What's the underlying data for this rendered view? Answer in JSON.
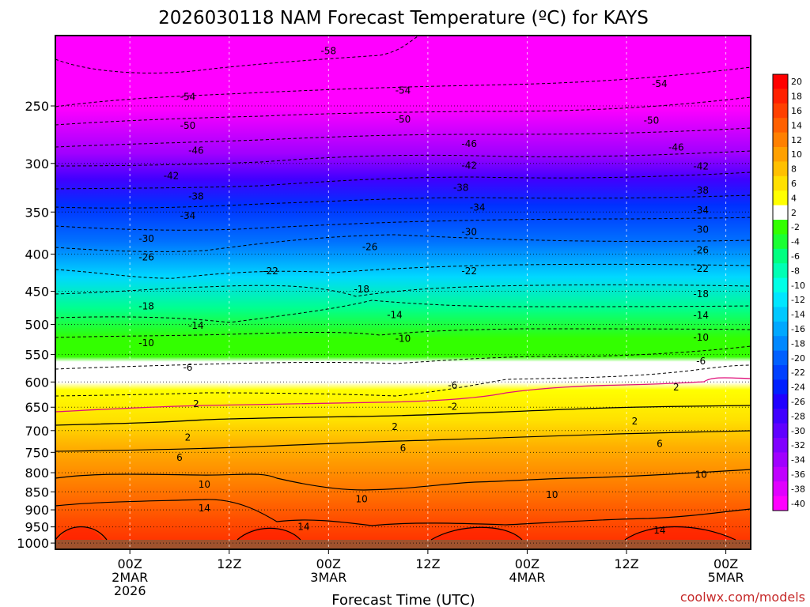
{
  "chart_data": {
    "type": "heatmap",
    "title": "2026030118 NAM Forecast Temperature (ºC) for KAYS",
    "xlabel": "Forecast Time (UTC)",
    "ylabel": "",
    "credit": "coolwx.com/models",
    "x_range_hours": [
      -3,
      81
    ],
    "y_pressure_range_hpa": [
      1020,
      200
    ],
    "y_ticks": [
      {
        "value": 250,
        "label": "250"
      },
      {
        "value": 300,
        "label": "300"
      },
      {
        "value": 350,
        "label": "350"
      },
      {
        "value": 400,
        "label": "400"
      },
      {
        "value": 450,
        "label": "450"
      },
      {
        "value": 500,
        "label": "500"
      },
      {
        "value": 550,
        "label": "550"
      },
      {
        "value": 600,
        "label": "600"
      },
      {
        "value": 650,
        "label": "650"
      },
      {
        "value": 700,
        "label": "700"
      },
      {
        "value": 750,
        "label": "750"
      },
      {
        "value": 800,
        "label": "800"
      },
      {
        "value": 850,
        "label": "850"
      },
      {
        "value": 900,
        "label": "900"
      },
      {
        "value": 950,
        "label": "950"
      },
      {
        "value": 1000,
        "label": "1000"
      }
    ],
    "x_ticks": [
      {
        "hour": 6,
        "lines": [
          "00Z",
          "2MAR",
          "2026"
        ]
      },
      {
        "hour": 18,
        "lines": [
          "12Z"
        ]
      },
      {
        "hour": 30,
        "lines": [
          "00Z",
          "3MAR"
        ]
      },
      {
        "hour": 42,
        "lines": [
          "12Z"
        ]
      },
      {
        "hour": 54,
        "lines": [
          "00Z",
          "4MAR"
        ]
      },
      {
        "hour": 66,
        "lines": [
          "12Z"
        ]
      },
      {
        "hour": 78,
        "lines": [
          "00Z",
          "5MAR"
        ]
      }
    ],
    "colorbar": {
      "colors": [
        "#ff0000",
        "#ff2000",
        "#ff4000",
        "#ff6000",
        "#ff8000",
        "#ffa000",
        "#ffc000",
        "#ffe000",
        "#ffff00",
        "#ffffff",
        "#33ff00",
        "#1aff33",
        "#00ff80",
        "#00ffb4",
        "#00ffe6",
        "#00e6ff",
        "#00c8ff",
        "#00a8ff",
        "#0088ff",
        "#0060ff",
        "#0040ff",
        "#0020ff",
        "#2000ff",
        "#4000ff",
        "#6000ff",
        "#8000ff",
        "#a000ff",
        "#c000ff",
        "#e000ff",
        "#ff00ff"
      ],
      "labels": [
        "20",
        "18",
        "16",
        "14",
        "12",
        "10",
        "8",
        "6",
        "4",
        "2",
        "-2",
        "-4",
        "-6",
        "-8",
        "-10",
        "-12",
        "-14",
        "-16",
        "-18",
        "-20",
        "-22",
        "-24",
        "-26",
        "-28",
        "-30",
        "-32",
        "-34",
        "-36",
        "-38",
        "-40"
      ]
    },
    "contour_labels": [
      {
        "text": "-58",
        "hour": 30,
        "p": 210
      },
      {
        "text": "-54",
        "hour": 13,
        "p": 243
      },
      {
        "text": "-54",
        "hour": 39,
        "p": 238
      },
      {
        "text": "-54",
        "hour": 70,
        "p": 233
      },
      {
        "text": "-50",
        "hour": 13,
        "p": 266
      },
      {
        "text": "-50",
        "hour": 39,
        "p": 261
      },
      {
        "text": "-50",
        "hour": 69,
        "p": 262
      },
      {
        "text": "-46",
        "hour": 14,
        "p": 288
      },
      {
        "text": "-46",
        "hour": 47,
        "p": 282
      },
      {
        "text": "-46",
        "hour": 72,
        "p": 285
      },
      {
        "text": "-42",
        "hour": 11,
        "p": 312
      },
      {
        "text": "-42",
        "hour": 47,
        "p": 302
      },
      {
        "text": "-42",
        "hour": 75,
        "p": 303
      },
      {
        "text": "-38",
        "hour": 14,
        "p": 333
      },
      {
        "text": "-38",
        "hour": 46,
        "p": 324
      },
      {
        "text": "-38",
        "hour": 75,
        "p": 327
      },
      {
        "text": "-34",
        "hour": 13,
        "p": 354
      },
      {
        "text": "-34",
        "hour": 48,
        "p": 345
      },
      {
        "text": "-34",
        "hour": 75,
        "p": 348
      },
      {
        "text": "-30",
        "hour": 8,
        "p": 381
      },
      {
        "text": "-30",
        "hour": 47,
        "p": 373
      },
      {
        "text": "-30",
        "hour": 75,
        "p": 370
      },
      {
        "text": "-26",
        "hour": 8,
        "p": 404
      },
      {
        "text": "-26",
        "hour": 35,
        "p": 391
      },
      {
        "text": "-26",
        "hour": 75,
        "p": 395
      },
      {
        "text": "-22",
        "hour": 23,
        "p": 422
      },
      {
        "text": "-22",
        "hour": 47,
        "p": 422
      },
      {
        "text": "-22",
        "hour": 75,
        "p": 419
      },
      {
        "text": "-18",
        "hour": 8,
        "p": 472
      },
      {
        "text": "-18",
        "hour": 34,
        "p": 447
      },
      {
        "text": "-18",
        "hour": 75,
        "p": 454
      },
      {
        "text": "-14",
        "hour": 14,
        "p": 502
      },
      {
        "text": "-14",
        "hour": 38,
        "p": 485
      },
      {
        "text": "-14",
        "hour": 75,
        "p": 486
      },
      {
        "text": "-10",
        "hour": 8,
        "p": 530
      },
      {
        "text": "-10",
        "hour": 39,
        "p": 523
      },
      {
        "text": "-10",
        "hour": 75,
        "p": 521
      },
      {
        "text": "-6",
        "hour": 13,
        "p": 573
      },
      {
        "text": "-6",
        "hour": 45,
        "p": 606
      },
      {
        "text": "-6",
        "hour": 75,
        "p": 562
      },
      {
        "text": "2",
        "hour": 14,
        "p": 643
      },
      {
        "text": "-2",
        "hour": 45,
        "p": 649
      },
      {
        "text": "2",
        "hour": 72,
        "p": 610
      },
      {
        "text": "2",
        "hour": 13,
        "p": 715
      },
      {
        "text": "2",
        "hour": 38,
        "p": 692
      },
      {
        "text": "2",
        "hour": 67,
        "p": 680
      },
      {
        "text": "6",
        "hour": 12,
        "p": 763
      },
      {
        "text": "6",
        "hour": 39,
        "p": 740
      },
      {
        "text": "6",
        "hour": 70,
        "p": 730
      },
      {
        "text": "10",
        "hour": 15,
        "p": 830
      },
      {
        "text": "10",
        "hour": 34,
        "p": 870
      },
      {
        "text": "10",
        "hour": 57,
        "p": 858
      },
      {
        "text": "10",
        "hour": 75,
        "p": 805
      },
      {
        "text": "14",
        "hour": 15,
        "p": 895
      },
      {
        "text": "14",
        "hour": 27,
        "p": 950
      },
      {
        "text": "14",
        "hour": 70,
        "p": 960
      }
    ]
  }
}
